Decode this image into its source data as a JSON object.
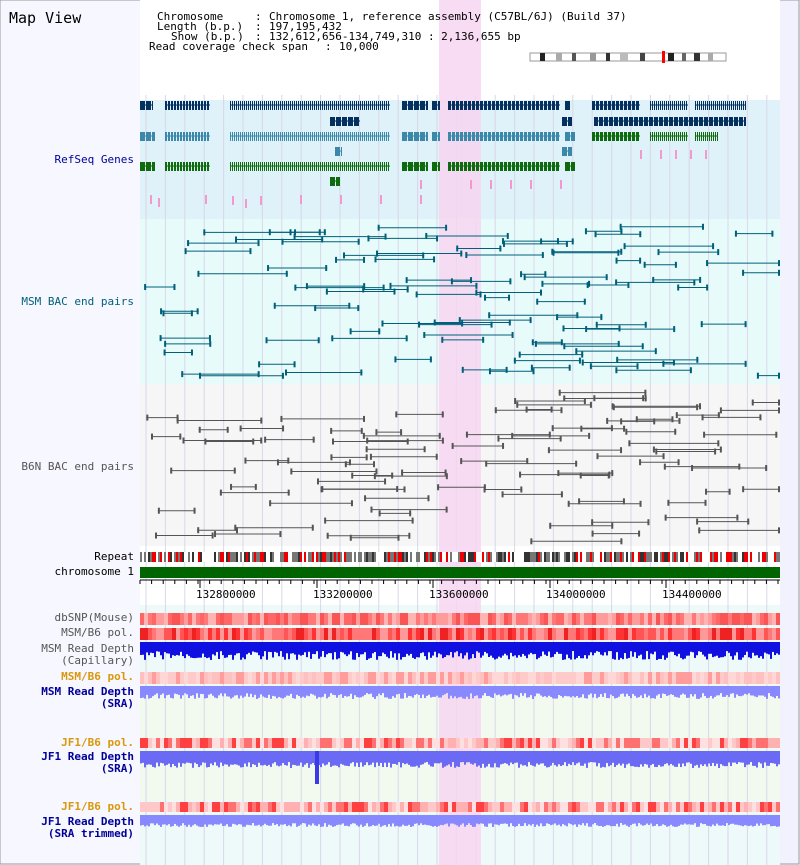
{
  "title": "Map View",
  "header": {
    "chromosome_label": "Chromosome",
    "chromosome_value": "Chromosome 1, reference assembly (C57BL/6J) (Build 37)",
    "length_label": "Length (b.p.)",
    "length_value": "197,195,432",
    "show_label": "Show (b.p.)",
    "show_value": "132,612,656-134,749,310 : 2,136,655 bp",
    "coverage_label": "Read coverage check span",
    "coverage_value": "10,000"
  },
  "tracks": {
    "refseq": "RefSeq Genes",
    "msm_bac": "MSM BAC end pairs",
    "b6n_bac": "B6N BAC end pairs",
    "repeat": "Repeat",
    "chromosome": "chromosome 1",
    "dbsnp": "dbSNP(Mouse)",
    "msm_pol": "MSM/B6 pol.",
    "msm_depth_cap_1": "MSM Read Depth",
    "msm_depth_cap_2": "(Capillary)",
    "msm_pol_sra": "MSM/B6 pol.",
    "msm_depth_sra_1": "MSM Read Depth",
    "msm_depth_sra_2": "(SRA)",
    "jf1_pol": "JF1/B6 pol.",
    "jf1_depth_1": "JF1 Read Depth",
    "jf1_depth_2": "(SRA)",
    "jf1_pol_trim": "JF1/B6 pol.",
    "jf1_trim_1": "JF1 Read Depth",
    "jf1_trim_2": "(SRA trimmed)"
  },
  "axis": {
    "ticks": [
      "132800000",
      "133200000",
      "133600000",
      "134000000",
      "134400000"
    ]
  },
  "colors": {
    "refseq_bg": "#dff1f9",
    "msm_bg": "#e8fbfb",
    "b6n_bg": "#f6f6f6",
    "highlight": "#f7d6f1",
    "gene_dark": "#03305e",
    "gene_mid": "#3b88a9",
    "gene_green": "#0d6b0d",
    "chrom_bar": "#006400",
    "depth_dark": "#1010e0",
    "depth_light": "#8888ff",
    "label_blue": "#000099",
    "label_teal": "#00607a",
    "label_orange": "#d9980c"
  }
}
